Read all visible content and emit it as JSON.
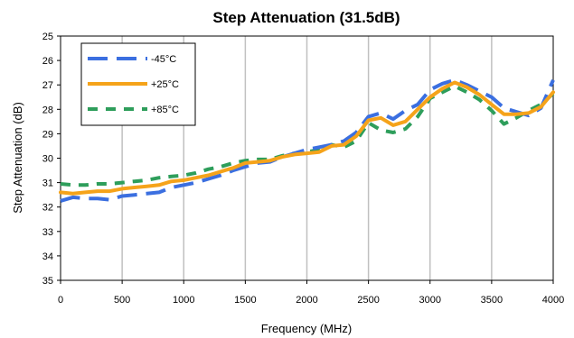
{
  "chart_data": {
    "type": "line",
    "title": "Step Attenuation (31.5dB)",
    "xlabel": "Frequency (MHz)",
    "ylabel": "Step Attenuation (dB)",
    "xlim": [
      0,
      4000
    ],
    "ylim": [
      25,
      35
    ],
    "y_inverted": true,
    "x_ticks": [
      0,
      500,
      1000,
      1500,
      2000,
      2500,
      3000,
      3500,
      4000
    ],
    "y_ticks": [
      25,
      26,
      27,
      28,
      29,
      30,
      31,
      32,
      33,
      34,
      35
    ],
    "grid": "vertical",
    "legend_position": "top-left",
    "series": [
      {
        "name": "-45°C",
        "color": "#3b6fe0",
        "dash": "long-dash",
        "x": [
          0,
          100,
          200,
          300,
          400,
          500,
          600,
          700,
          800,
          900,
          1000,
          1100,
          1200,
          1300,
          1400,
          1500,
          1600,
          1700,
          1800,
          1900,
          2000,
          2100,
          2200,
          2300,
          2400,
          2500,
          2600,
          2700,
          2800,
          2900,
          3000,
          3100,
          3200,
          3300,
          3400,
          3500,
          3600,
          3700,
          3800,
          3900,
          4000
        ],
        "y": [
          31.75,
          31.6,
          31.65,
          31.65,
          31.7,
          31.55,
          31.5,
          31.45,
          31.4,
          31.2,
          31.1,
          31.0,
          30.85,
          30.7,
          30.5,
          30.35,
          30.2,
          30.15,
          29.95,
          29.8,
          29.65,
          29.55,
          29.45,
          29.3,
          28.95,
          28.3,
          28.15,
          28.4,
          28.05,
          27.8,
          27.2,
          26.95,
          26.8,
          27.0,
          27.25,
          27.5,
          27.95,
          28.1,
          28.25,
          27.95,
          26.8
        ]
      },
      {
        "name": "+25°C",
        "color": "#f5a31a",
        "dash": "solid",
        "x": [
          0,
          100,
          200,
          300,
          400,
          500,
          600,
          700,
          800,
          900,
          1000,
          1100,
          1200,
          1300,
          1400,
          1500,
          1600,
          1700,
          1800,
          1900,
          2000,
          2100,
          2200,
          2300,
          2400,
          2500,
          2600,
          2700,
          2800,
          2900,
          3000,
          3100,
          3200,
          3300,
          3400,
          3500,
          3600,
          3700,
          3800,
          3900,
          4000
        ],
        "y": [
          31.4,
          31.45,
          31.4,
          31.35,
          31.35,
          31.25,
          31.2,
          31.15,
          31.1,
          30.95,
          30.9,
          30.8,
          30.7,
          30.55,
          30.4,
          30.2,
          30.15,
          30.1,
          29.95,
          29.85,
          29.8,
          29.75,
          29.5,
          29.45,
          29.1,
          28.45,
          28.35,
          28.65,
          28.5,
          28.0,
          27.5,
          27.15,
          26.9,
          27.1,
          27.4,
          27.8,
          28.2,
          28.2,
          28.15,
          27.9,
          27.3
        ]
      },
      {
        "name": "+85°C",
        "color": "#2e9e5b",
        "dash": "medium-dash",
        "x": [
          0,
          100,
          200,
          300,
          400,
          500,
          600,
          700,
          800,
          900,
          1000,
          1100,
          1200,
          1300,
          1400,
          1500,
          1600,
          1700,
          1800,
          1900,
          2000,
          2100,
          2200,
          2300,
          2400,
          2500,
          2600,
          2700,
          2800,
          2900,
          3000,
          3100,
          3200,
          3300,
          3400,
          3500,
          3600,
          3700,
          3800,
          3900,
          4000
        ],
        "y": [
          31.05,
          31.1,
          31.1,
          31.05,
          31.05,
          31.0,
          30.95,
          30.9,
          30.8,
          30.75,
          30.7,
          30.6,
          30.45,
          30.35,
          30.2,
          30.1,
          30.05,
          30.05,
          29.9,
          29.8,
          29.75,
          29.65,
          29.45,
          29.55,
          29.3,
          28.55,
          28.85,
          28.95,
          28.8,
          28.3,
          27.55,
          27.3,
          27.05,
          27.3,
          27.6,
          28.05,
          28.6,
          28.35,
          28.05,
          27.8,
          27.35
        ]
      }
    ]
  }
}
